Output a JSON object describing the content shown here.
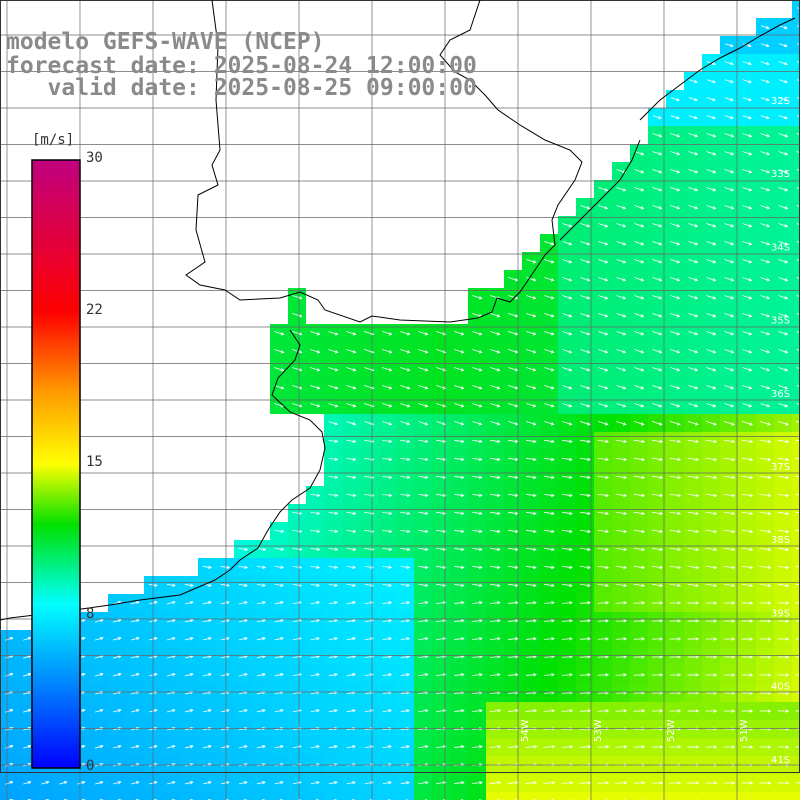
{
  "title": {
    "line1": "modelo GEFS-WAVE (NCEP)",
    "line2": "forecast date: 2025-08-24 12:00:00",
    "line3": "   valid date: 2025-08-25 09:00:00"
  },
  "colorbar": {
    "unit": "[m/s]",
    "min": 0,
    "max": 30,
    "ticks": [
      {
        "value": 30,
        "label": "30"
      },
      {
        "value": 22,
        "label": "22"
      },
      {
        "value": 15,
        "label": "15"
      },
      {
        "value": 8,
        "label": "8"
      },
      {
        "value": 0,
        "label": "0"
      }
    ]
  },
  "latitude_labels": [
    "32S",
    "33S",
    "34S",
    "35S",
    "36S",
    "37S",
    "38S",
    "39S",
    "40S",
    "41S"
  ],
  "longitude_labels": [
    "54W",
    "53W",
    "52W",
    "51W"
  ],
  "colors": {
    "land": "#ffffff",
    "grid": "#555555",
    "coast": "#000000",
    "arrow": "#ffffff",
    "title": "#8a8a8a"
  }
}
